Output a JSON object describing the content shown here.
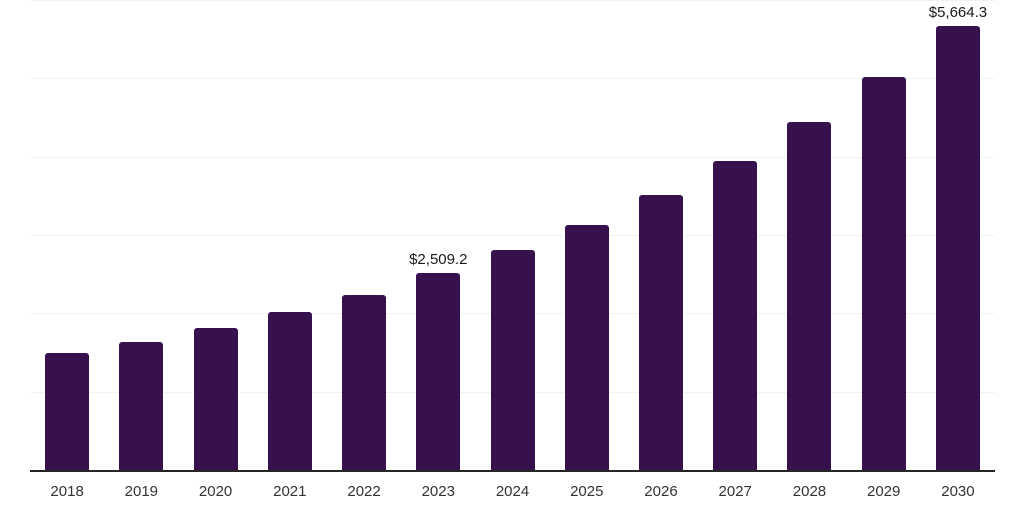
{
  "chart_data": {
    "type": "bar",
    "title": "",
    "xlabel": "",
    "ylabel": "",
    "categories": [
      "2018",
      "2019",
      "2020",
      "2021",
      "2022",
      "2023",
      "2024",
      "2025",
      "2026",
      "2027",
      "2028",
      "2029",
      "2030"
    ],
    "values": [
      1490,
      1640,
      1815,
      2015,
      2235,
      2509.2,
      2815,
      3130,
      3510,
      3945,
      4445,
      5015,
      5664.3
    ],
    "ylim": [
      0,
      6000
    ],
    "grid_step": 1000,
    "grid": "horizontal-only",
    "legend_position": "none",
    "y_axis_labels_visible": false,
    "annotations": [
      {
        "category": "2023",
        "text": "$2,509.2"
      },
      {
        "category": "2030",
        "text": "$5,664.3"
      }
    ]
  },
  "colors": {
    "background": "#ffffff",
    "bar": "#36114d",
    "axis_line": "#262626",
    "gridline": "#f2f2f2",
    "tick_label": "#333333",
    "value_label": "#1a1a1a"
  }
}
